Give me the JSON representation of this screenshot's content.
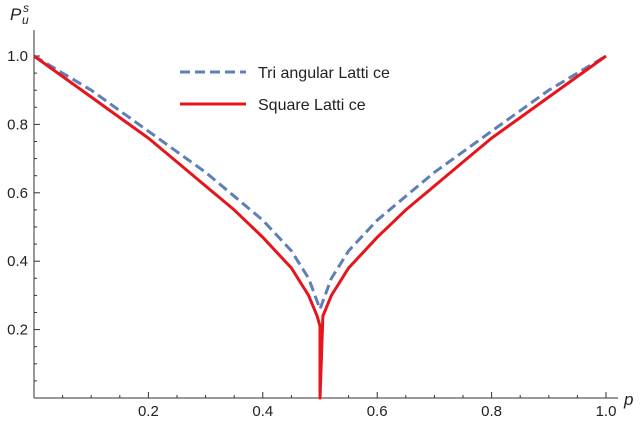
{
  "chart_data": {
    "type": "line",
    "xlabel": "p",
    "ylabel": {
      "base": "P",
      "sup": "s",
      "sub": "u"
    },
    "xlim": [
      0,
      1
    ],
    "ylim": [
      0,
      1
    ],
    "x_ticks": [
      0.2,
      0.4,
      0.6,
      0.8,
      1.0
    ],
    "x_tick_labels": [
      "0.2",
      "0.4",
      "0.6",
      "0.8",
      "1.0"
    ],
    "y_ticks": [
      0.2,
      0.4,
      0.6,
      0.8,
      1.0
    ],
    "y_tick_labels": [
      "0.2",
      "0.4",
      "0.6",
      "0.8",
      "1.0"
    ],
    "grid": false,
    "legend_position": "top-center",
    "series": [
      {
        "name": "Tri angular Latti ce",
        "color": "#5f7fb5",
        "style": "dashed",
        "x": [
          0,
          0.05,
          0.1,
          0.15,
          0.2,
          0.25,
          0.3,
          0.35,
          0.4,
          0.45,
          0.48,
          0.5,
          0.52,
          0.55,
          0.6,
          0.65,
          0.7,
          0.75,
          0.8,
          0.85,
          0.9,
          0.95,
          1
        ],
        "y": [
          1,
          0.95,
          0.9,
          0.84,
          0.78,
          0.72,
          0.66,
          0.59,
          0.52,
          0.43,
          0.35,
          0.26,
          0.35,
          0.43,
          0.52,
          0.59,
          0.66,
          0.72,
          0.78,
          0.84,
          0.9,
          0.95,
          1
        ]
      },
      {
        "name": "Square Latti ce",
        "color": "#e8141c",
        "style": "solid",
        "x": [
          0,
          0.05,
          0.1,
          0.15,
          0.2,
          0.25,
          0.3,
          0.35,
          0.4,
          0.45,
          0.48,
          0.495,
          0.5,
          0.5,
          0.505,
          0.52,
          0.55,
          0.6,
          0.65,
          0.7,
          0.75,
          0.8,
          0.85,
          0.9,
          0.95,
          1
        ],
        "y": [
          1,
          0.94,
          0.88,
          0.82,
          0.76,
          0.69,
          0.62,
          0.55,
          0.47,
          0.38,
          0.3,
          0.24,
          0.21,
          0,
          0.24,
          0.3,
          0.38,
          0.47,
          0.55,
          0.62,
          0.69,
          0.76,
          0.82,
          0.88,
          0.94,
          1
        ]
      }
    ]
  }
}
